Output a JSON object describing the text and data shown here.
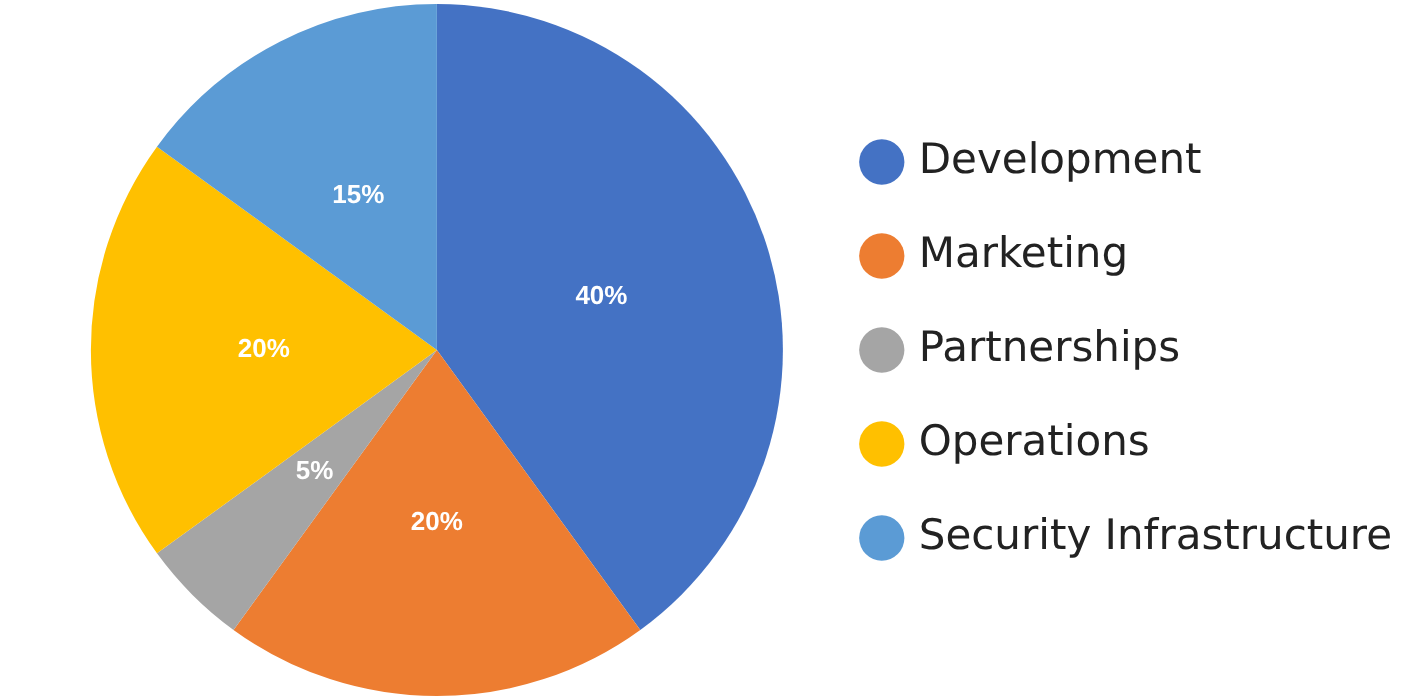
{
  "chart_data": {
    "type": "pie",
    "categories": [
      "Development",
      "Marketing",
      "Partnerships",
      "Operations",
      "Security Infrastructure"
    ],
    "values": [
      40,
      20,
      5,
      20,
      15
    ],
    "value_labels": [
      "40%",
      "20%",
      "5%",
      "20%",
      "15%"
    ],
    "colors": [
      "#4472c4",
      "#ed7d31",
      "#a5a5a5",
      "#ffc000",
      "#5b9bd5"
    ],
    "legend": "right"
  }
}
